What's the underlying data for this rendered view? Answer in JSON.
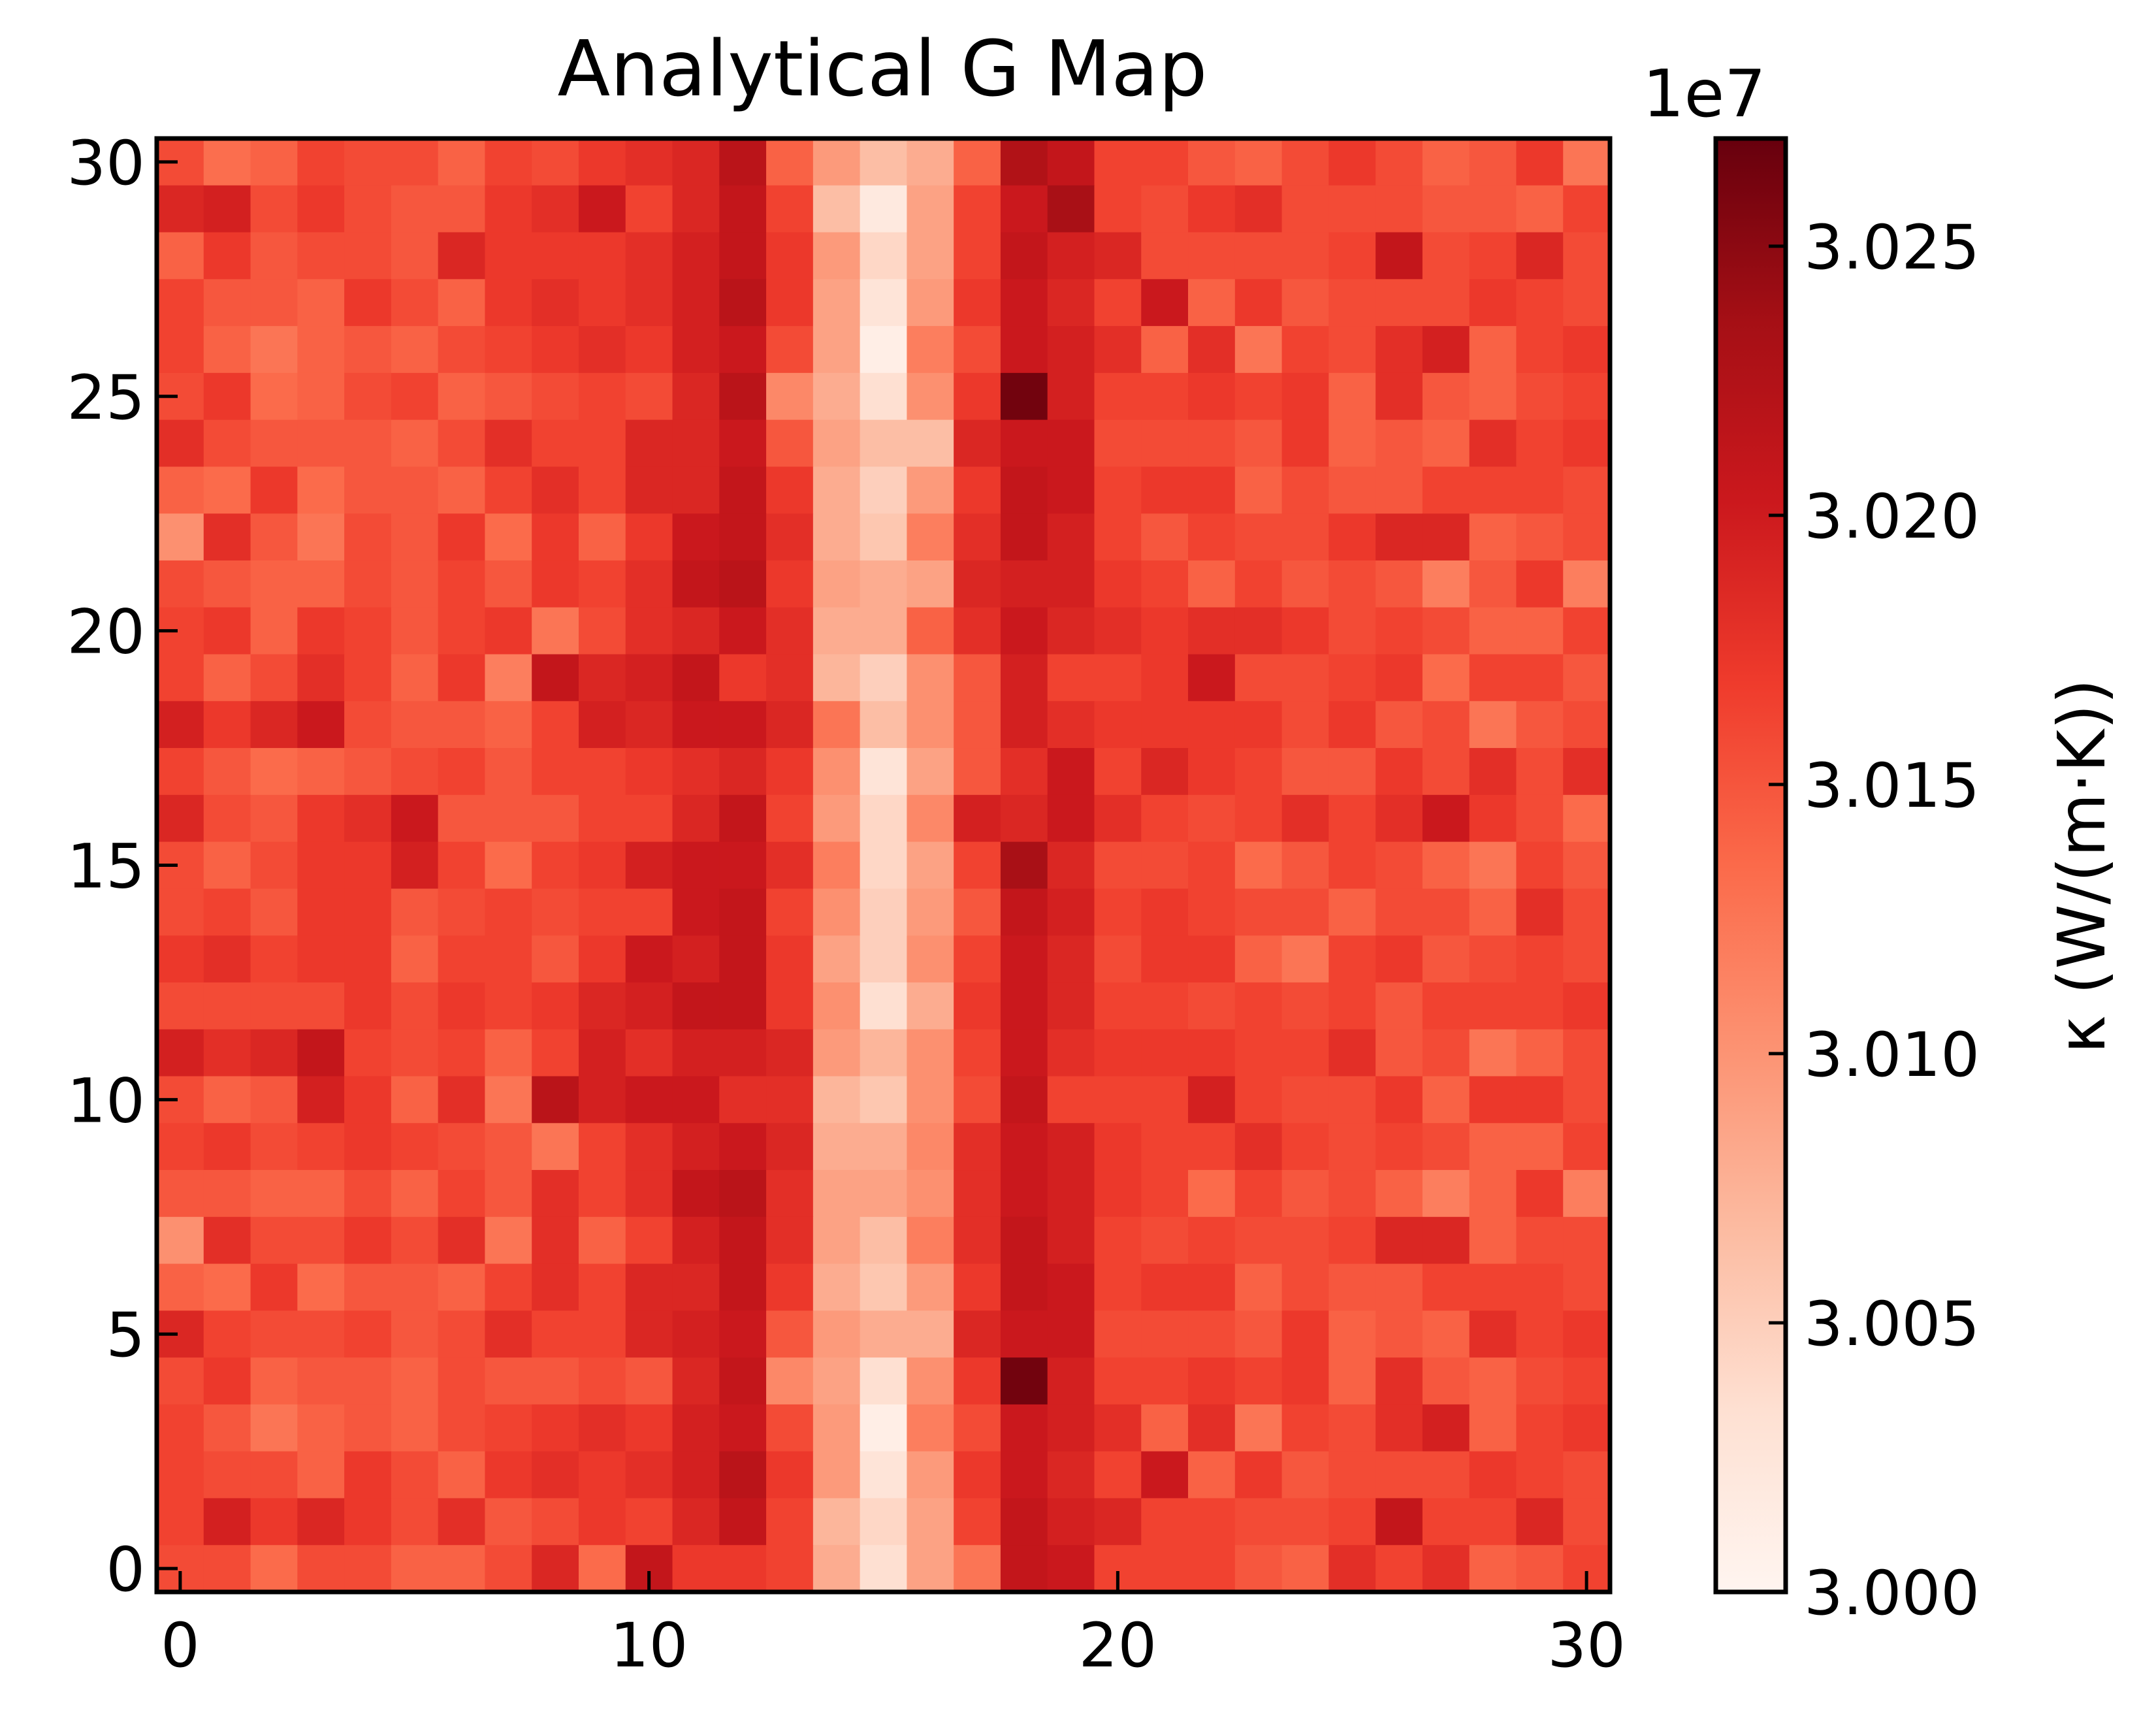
{
  "chart_data": {
    "type": "heatmap",
    "title": "Analytical G Map",
    "xlabel": "",
    "ylabel": "",
    "colorbar_label": "κ (W/(m·K))",
    "colorbar_offset_text": "1e7",
    "colormap": "Reds",
    "colormap_stops": [
      "#fff5f0",
      "#fee0d2",
      "#fcbba1",
      "#fc9272",
      "#fb6a4a",
      "#ef3b2c",
      "#cb181d",
      "#a50f15",
      "#67000d"
    ],
    "vmin": 30000000,
    "vmax": 30270000,
    "x_ticks": [
      "0",
      "10",
      "20",
      "30"
    ],
    "y_ticks": [
      "0",
      "5",
      "10",
      "15",
      "20",
      "25",
      "30"
    ],
    "colorbar_ticks": [
      "3.000",
      "3.005",
      "3.010",
      "3.015",
      "3.020",
      "3.025"
    ],
    "xlim": [
      -0.5,
      30.5
    ],
    "ylim": [
      -0.5,
      30.5
    ],
    "grid": false,
    "n_cols": 31,
    "n_rows": 31,
    "value_scale": 10000000.0,
    "value_rows_note": "rows listed from y = 30 (top) down to y = 0 (bottom); values in units of 1e7 W/(m·K)",
    "value_rows": [
      [
        3.0157,
        3.0132,
        3.0141,
        3.0164,
        3.0157,
        3.0157,
        3.0141,
        3.0164,
        3.0157,
        3.0172,
        3.018,
        3.0188,
        3.0218,
        3.0141,
        3.0095,
        3.0065,
        3.008,
        3.0141,
        3.0226,
        3.021,
        3.0164,
        3.0164,
        3.0149,
        3.0141,
        3.0157,
        3.0172,
        3.0157,
        3.0141,
        3.0149,
        3.0172,
        3.0126
      ],
      [
        3.0188,
        3.0195,
        3.0157,
        3.0172,
        3.0157,
        3.0149,
        3.0149,
        3.0172,
        3.018,
        3.0203,
        3.0164,
        3.0188,
        3.021,
        3.0164,
        3.0065,
        3.0019,
        3.0088,
        3.0164,
        3.0203,
        3.0233,
        3.0164,
        3.0157,
        3.0172,
        3.018,
        3.0157,
        3.0157,
        3.0157,
        3.0149,
        3.0149,
        3.0141,
        3.0164
      ],
      [
        3.0141,
        3.0172,
        3.0149,
        3.0157,
        3.0157,
        3.0149,
        3.0188,
        3.0172,
        3.0172,
        3.0172,
        3.018,
        3.0195,
        3.021,
        3.0172,
        3.0095,
        3.0042,
        3.0088,
        3.0164,
        3.021,
        3.0195,
        3.0188,
        3.0157,
        3.0157,
        3.0157,
        3.0157,
        3.0164,
        3.021,
        3.0157,
        3.0164,
        3.0188,
        3.0157
      ],
      [
        3.0164,
        3.0149,
        3.0149,
        3.0141,
        3.0172,
        3.0157,
        3.0141,
        3.0172,
        3.018,
        3.0172,
        3.018,
        3.0195,
        3.0218,
        3.0172,
        3.0088,
        3.0027,
        3.0095,
        3.0172,
        3.0203,
        3.0188,
        3.0164,
        3.0203,
        3.0141,
        3.0172,
        3.0149,
        3.0157,
        3.0157,
        3.0157,
        3.0172,
        3.0164,
        3.0157
      ],
      [
        3.0164,
        3.0141,
        3.0126,
        3.0141,
        3.0149,
        3.0141,
        3.0157,
        3.0164,
        3.0172,
        3.018,
        3.0172,
        3.0195,
        3.0203,
        3.0157,
        3.0088,
        3.0011,
        3.0118,
        3.0157,
        3.0203,
        3.0195,
        3.018,
        3.0141,
        3.018,
        3.0126,
        3.0164,
        3.0157,
        3.018,
        3.0195,
        3.0141,
        3.0164,
        3.0172
      ],
      [
        3.0157,
        3.0172,
        3.0134,
        3.0141,
        3.0157,
        3.0164,
        3.0141,
        3.0149,
        3.0157,
        3.0164,
        3.0157,
        3.0188,
        3.0218,
        3.011,
        3.008,
        3.0034,
        3.0103,
        3.0172,
        3.0264,
        3.0195,
        3.0164,
        3.0164,
        3.0172,
        3.0164,
        3.0172,
        3.0141,
        3.018,
        3.0149,
        3.0141,
        3.0157,
        3.0164
      ],
      [
        3.018,
        3.0157,
        3.0149,
        3.0149,
        3.0149,
        3.0141,
        3.0157,
        3.018,
        3.0164,
        3.0164,
        3.0188,
        3.0188,
        3.0203,
        3.0149,
        3.0088,
        3.0065,
        3.0065,
        3.0188,
        3.0203,
        3.0203,
        3.0157,
        3.0157,
        3.0157,
        3.0149,
        3.0172,
        3.0141,
        3.0149,
        3.0141,
        3.018,
        3.0164,
        3.0172
      ],
      [
        3.0141,
        3.0134,
        3.0172,
        3.0134,
        3.0149,
        3.0149,
        3.0141,
        3.0164,
        3.018,
        3.0164,
        3.0188,
        3.0188,
        3.021,
        3.0172,
        3.008,
        3.0049,
        3.0095,
        3.0172,
        3.021,
        3.0203,
        3.0164,
        3.0172,
        3.0172,
        3.0141,
        3.0157,
        3.0149,
        3.0149,
        3.0164,
        3.0164,
        3.0164,
        3.0157
      ],
      [
        3.0103,
        3.018,
        3.0149,
        3.0126,
        3.0157,
        3.0149,
        3.0172,
        3.0134,
        3.0172,
        3.0141,
        3.0172,
        3.0203,
        3.021,
        3.018,
        3.008,
        3.0057,
        3.0118,
        3.018,
        3.021,
        3.0195,
        3.0164,
        3.0149,
        3.0164,
        3.0157,
        3.0157,
        3.0172,
        3.0188,
        3.0188,
        3.0141,
        3.0149,
        3.0157
      ],
      [
        3.0157,
        3.0149,
        3.0141,
        3.0141,
        3.0157,
        3.0149,
        3.0164,
        3.0149,
        3.0172,
        3.0164,
        3.018,
        3.021,
        3.0218,
        3.0172,
        3.0088,
        3.008,
        3.0088,
        3.0188,
        3.0195,
        3.0195,
        3.0172,
        3.0164,
        3.0141,
        3.0164,
        3.0149,
        3.0157,
        3.0149,
        3.0118,
        3.0149,
        3.0172,
        3.0118
      ],
      [
        3.0164,
        3.0172,
        3.0141,
        3.0172,
        3.0164,
        3.0149,
        3.0164,
        3.0172,
        3.0126,
        3.0157,
        3.018,
        3.0188,
        3.0203,
        3.018,
        3.008,
        3.008,
        3.0141,
        3.018,
        3.0203,
        3.0188,
        3.018,
        3.0172,
        3.018,
        3.018,
        3.0172,
        3.0157,
        3.0164,
        3.0157,
        3.0141,
        3.0141,
        3.0164
      ],
      [
        3.0164,
        3.0141,
        3.0157,
        3.018,
        3.0164,
        3.0141,
        3.0172,
        3.0118,
        3.021,
        3.0188,
        3.0195,
        3.021,
        3.0172,
        3.018,
        3.0072,
        3.0049,
        3.0103,
        3.0149,
        3.0195,
        3.0164,
        3.0164,
        3.0172,
        3.0203,
        3.0157,
        3.0157,
        3.0164,
        3.0172,
        3.0134,
        3.0164,
        3.0164,
        3.0149
      ],
      [
        3.0195,
        3.0172,
        3.0188,
        3.0203,
        3.0157,
        3.0149,
        3.0149,
        3.0141,
        3.0164,
        3.0195,
        3.0188,
        3.0203,
        3.0203,
        3.0188,
        3.0126,
        3.0065,
        3.0103,
        3.0149,
        3.0195,
        3.018,
        3.0172,
        3.0172,
        3.0172,
        3.0172,
        3.0157,
        3.0172,
        3.0149,
        3.0157,
        3.0126,
        3.0149,
        3.0157
      ],
      [
        3.0164,
        3.0149,
        3.0134,
        3.0141,
        3.0149,
        3.0157,
        3.0164,
        3.0149,
        3.0164,
        3.0164,
        3.0172,
        3.018,
        3.0188,
        3.0172,
        3.0103,
        3.0027,
        3.0088,
        3.0149,
        3.018,
        3.0203,
        3.0164,
        3.0188,
        3.0172,
        3.0164,
        3.0149,
        3.0149,
        3.0172,
        3.0157,
        3.018,
        3.0157,
        3.018
      ],
      [
        3.0188,
        3.0157,
        3.0149,
        3.0172,
        3.018,
        3.0203,
        3.0149,
        3.0149,
        3.0149,
        3.0164,
        3.0164,
        3.0188,
        3.021,
        3.0164,
        3.0095,
        3.0042,
        3.011,
        3.0195,
        3.0188,
        3.0203,
        3.018,
        3.0164,
        3.0157,
        3.0164,
        3.018,
        3.0164,
        3.018,
        3.0203,
        3.0172,
        3.0157,
        3.0134
      ],
      [
        3.0157,
        3.0141,
        3.0157,
        3.0172,
        3.0172,
        3.0195,
        3.0164,
        3.0134,
        3.0164,
        3.0172,
        3.0195,
        3.0203,
        3.0203,
        3.018,
        3.0118,
        3.0042,
        3.0088,
        3.0164,
        3.0233,
        3.0188,
        3.0157,
        3.0157,
        3.0164,
        3.0134,
        3.0149,
        3.0164,
        3.0157,
        3.0141,
        3.0126,
        3.0164,
        3.0149
      ],
      [
        3.0157,
        3.0164,
        3.0149,
        3.0172,
        3.0172,
        3.0149,
        3.0157,
        3.0164,
        3.0157,
        3.0164,
        3.0164,
        3.0203,
        3.021,
        3.0164,
        3.0103,
        3.0049,
        3.0095,
        3.0149,
        3.021,
        3.0195,
        3.0164,
        3.0172,
        3.0164,
        3.0157,
        3.0157,
        3.0141,
        3.0157,
        3.0157,
        3.0141,
        3.018,
        3.0157
      ],
      [
        3.0172,
        3.018,
        3.0164,
        3.0172,
        3.0172,
        3.0141,
        3.0164,
        3.0164,
        3.0149,
        3.0172,
        3.0203,
        3.0195,
        3.021,
        3.0172,
        3.0088,
        3.0049,
        3.0103,
        3.0164,
        3.0203,
        3.0188,
        3.0157,
        3.0172,
        3.0172,
        3.0141,
        3.0126,
        3.0164,
        3.0172,
        3.0149,
        3.0157,
        3.0164,
        3.0157
      ],
      [
        3.0157,
        3.0157,
        3.0157,
        3.0157,
        3.0172,
        3.0157,
        3.0172,
        3.0164,
        3.0172,
        3.0188,
        3.0195,
        3.021,
        3.021,
        3.0172,
        3.0103,
        3.0034,
        3.008,
        3.0172,
        3.0203,
        3.0188,
        3.0164,
        3.0164,
        3.0157,
        3.0164,
        3.0157,
        3.0164,
        3.0149,
        3.0164,
        3.0164,
        3.0164,
        3.0172
      ],
      [
        3.0195,
        3.018,
        3.0188,
        3.021,
        3.0164,
        3.0157,
        3.0164,
        3.0141,
        3.0164,
        3.0195,
        3.018,
        3.0195,
        3.0195,
        3.0188,
        3.0095,
        3.0072,
        3.0103,
        3.0164,
        3.0203,
        3.018,
        3.0172,
        3.0172,
        3.0172,
        3.0164,
        3.0164,
        3.018,
        3.0149,
        3.0157,
        3.0126,
        3.0141,
        3.0157
      ],
      [
        3.0157,
        3.0141,
        3.0149,
        3.0195,
        3.0172,
        3.0141,
        3.018,
        3.0126,
        3.0218,
        3.0195,
        3.0203,
        3.0203,
        3.018,
        3.018,
        3.0072,
        3.0057,
        3.0103,
        3.0157,
        3.021,
        3.0164,
        3.0164,
        3.0164,
        3.0195,
        3.0164,
        3.0157,
        3.0157,
        3.0172,
        3.0141,
        3.0172,
        3.0172,
        3.0157
      ],
      [
        3.0164,
        3.0172,
        3.0157,
        3.0164,
        3.0172,
        3.0164,
        3.0157,
        3.0149,
        3.0126,
        3.0164,
        3.018,
        3.0195,
        3.0203,
        3.0188,
        3.008,
        3.008,
        3.011,
        3.018,
        3.0203,
        3.0195,
        3.0172,
        3.0164,
        3.0164,
        3.018,
        3.0164,
        3.0157,
        3.0164,
        3.0157,
        3.0141,
        3.0141,
        3.0164
      ],
      [
        3.0149,
        3.0149,
        3.0141,
        3.0141,
        3.0157,
        3.0141,
        3.0164,
        3.0149,
        3.018,
        3.0164,
        3.018,
        3.021,
        3.0218,
        3.018,
        3.0088,
        3.0088,
        3.0103,
        3.018,
        3.0203,
        3.0195,
        3.0172,
        3.0164,
        3.0134,
        3.0164,
        3.0149,
        3.0157,
        3.0141,
        3.0118,
        3.0141,
        3.0172,
        3.0118
      ],
      [
        3.0103,
        3.018,
        3.0157,
        3.0157,
        3.0172,
        3.0157,
        3.018,
        3.0126,
        3.018,
        3.0141,
        3.0164,
        3.0195,
        3.021,
        3.018,
        3.0088,
        3.0065,
        3.0118,
        3.018,
        3.021,
        3.0195,
        3.0164,
        3.0157,
        3.0164,
        3.0157,
        3.0157,
        3.0164,
        3.0188,
        3.0188,
        3.0141,
        3.0157,
        3.0157
      ],
      [
        3.0141,
        3.0134,
        3.0172,
        3.0134,
        3.0149,
        3.0149,
        3.0141,
        3.0164,
        3.018,
        3.0164,
        3.0188,
        3.0188,
        3.021,
        3.0172,
        3.008,
        3.0057,
        3.0095,
        3.0172,
        3.021,
        3.0203,
        3.0164,
        3.0172,
        3.0172,
        3.0141,
        3.0157,
        3.0149,
        3.0149,
        3.0164,
        3.0164,
        3.0164,
        3.0157
      ],
      [
        3.0188,
        3.0164,
        3.0157,
        3.0157,
        3.0164,
        3.0149,
        3.0157,
        3.018,
        3.0164,
        3.0164,
        3.0188,
        3.0195,
        3.0203,
        3.0149,
        3.0095,
        3.008,
        3.008,
        3.0188,
        3.0203,
        3.0203,
        3.0157,
        3.0157,
        3.0157,
        3.0149,
        3.0172,
        3.0141,
        3.0149,
        3.0141,
        3.018,
        3.0164,
        3.0172
      ],
      [
        3.0157,
        3.0172,
        3.0141,
        3.0149,
        3.0149,
        3.0141,
        3.0157,
        3.0149,
        3.0149,
        3.0157,
        3.0149,
        3.0188,
        3.021,
        3.011,
        3.0088,
        3.0034,
        3.0103,
        3.0172,
        3.0264,
        3.0195,
        3.0164,
        3.0164,
        3.0172,
        3.0164,
        3.0172,
        3.0141,
        3.018,
        3.0149,
        3.0141,
        3.0157,
        3.0164
      ],
      [
        3.0164,
        3.0149,
        3.0126,
        3.0141,
        3.0149,
        3.0141,
        3.0157,
        3.0164,
        3.0172,
        3.018,
        3.0172,
        3.0195,
        3.0203,
        3.0157,
        3.0095,
        3.0011,
        3.0118,
        3.0157,
        3.0203,
        3.0195,
        3.018,
        3.0141,
        3.018,
        3.0126,
        3.0164,
        3.0157,
        3.018,
        3.0195,
        3.0141,
        3.0164,
        3.0172
      ],
      [
        3.0164,
        3.0157,
        3.0157,
        3.0141,
        3.0172,
        3.0157,
        3.0141,
        3.0172,
        3.018,
        3.0172,
        3.018,
        3.0195,
        3.0218,
        3.0172,
        3.0095,
        3.0027,
        3.0095,
        3.0172,
        3.0203,
        3.0188,
        3.0164,
        3.0203,
        3.0141,
        3.0172,
        3.0149,
        3.0157,
        3.0157,
        3.0157,
        3.0172,
        3.0164,
        3.0157
      ],
      [
        3.0164,
        3.0195,
        3.0172,
        3.0188,
        3.0172,
        3.0157,
        3.018,
        3.0149,
        3.0157,
        3.0172,
        3.0164,
        3.0188,
        3.021,
        3.0164,
        3.0072,
        3.0042,
        3.0088,
        3.0164,
        3.021,
        3.0195,
        3.0188,
        3.0164,
        3.0164,
        3.0157,
        3.0157,
        3.0164,
        3.021,
        3.0164,
        3.0164,
        3.0188,
        3.0157
      ],
      [
        3.0157,
        3.0157,
        3.0134,
        3.0157,
        3.0157,
        3.0141,
        3.0141,
        3.0157,
        3.0188,
        3.0134,
        3.021,
        3.0172,
        3.0172,
        3.0164,
        3.008,
        3.0034,
        3.0088,
        3.0126,
        3.021,
        3.0203,
        3.0164,
        3.0164,
        3.0164,
        3.0149,
        3.0141,
        3.018,
        3.0164,
        3.018,
        3.0141,
        3.0149,
        3.0164
      ]
    ]
  }
}
